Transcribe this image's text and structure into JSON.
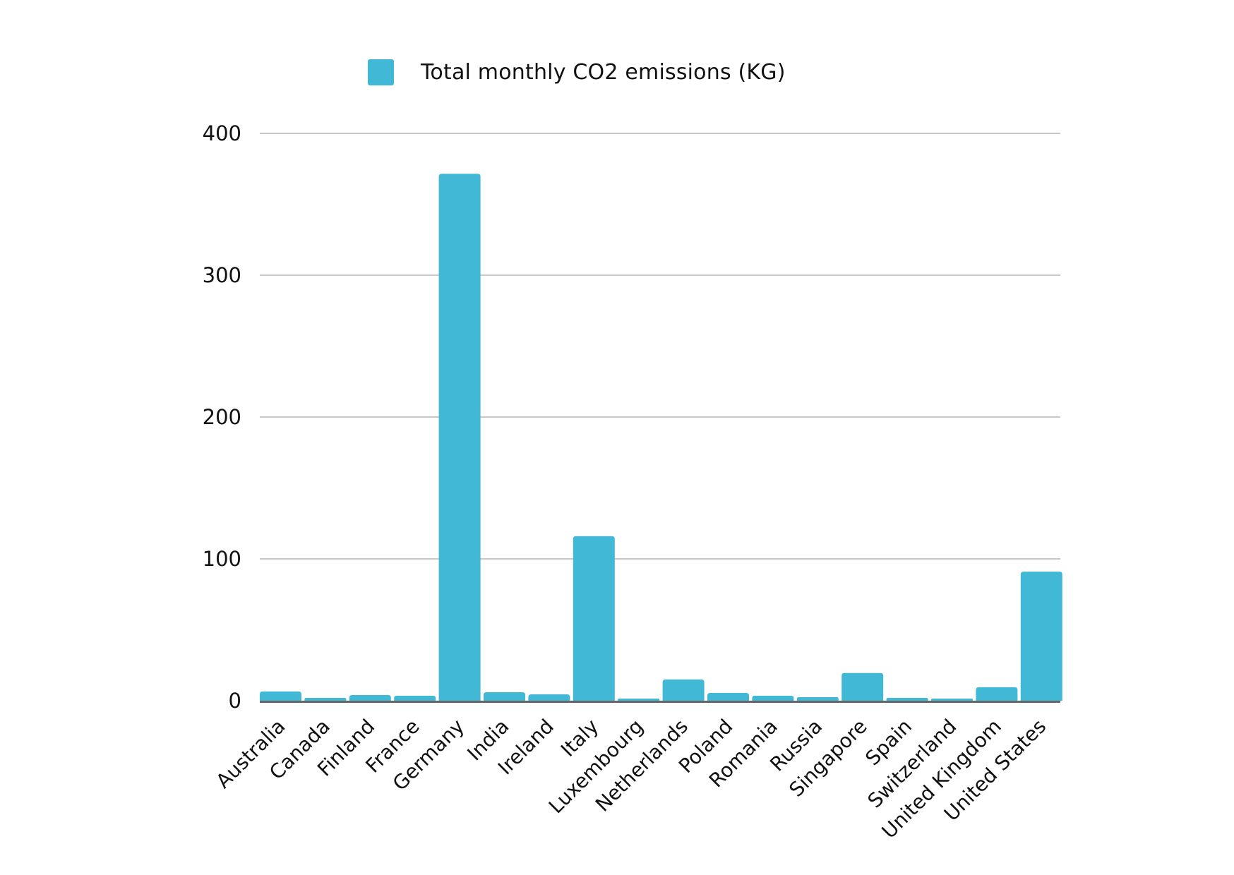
{
  "chart_data": {
    "type": "bar",
    "title": "",
    "xlabel": "",
    "ylabel": "",
    "legend": {
      "position": "top",
      "entries": [
        "Total monthly CO2 emissions (KG)"
      ]
    },
    "categories": [
      "Australia",
      "Canada",
      "Finland",
      "France",
      "Germany",
      "India",
      "Ireland",
      "Italy",
      "Luxembourg",
      "Netherlands",
      "Poland",
      "Romania",
      "Russia",
      "Singapore",
      "Spain",
      "Switzerland",
      "United Kingdom",
      "United States"
    ],
    "series": [
      {
        "name": "Total monthly CO2 emissions (KG)",
        "color": "#42B8D7",
        "values": [
          6.5,
          2,
          4,
          3.5,
          371.5,
          6,
          4.5,
          116,
          1.5,
          15,
          5.5,
          3.5,
          2.5,
          19.5,
          2,
          1.5,
          9.5,
          91
        ]
      }
    ],
    "ylim": [
      0,
      400
    ],
    "yticks": [
      0,
      100,
      200,
      300,
      400
    ],
    "ytick_labels": [
      "0",
      "100",
      "200",
      "300",
      "400"
    ],
    "grid": true,
    "xtick_rotation_deg": -45
  },
  "colors": {
    "bar": "#42B8D7",
    "grid": "#c8c8c8",
    "axis": "#666666",
    "text": "#111111"
  }
}
